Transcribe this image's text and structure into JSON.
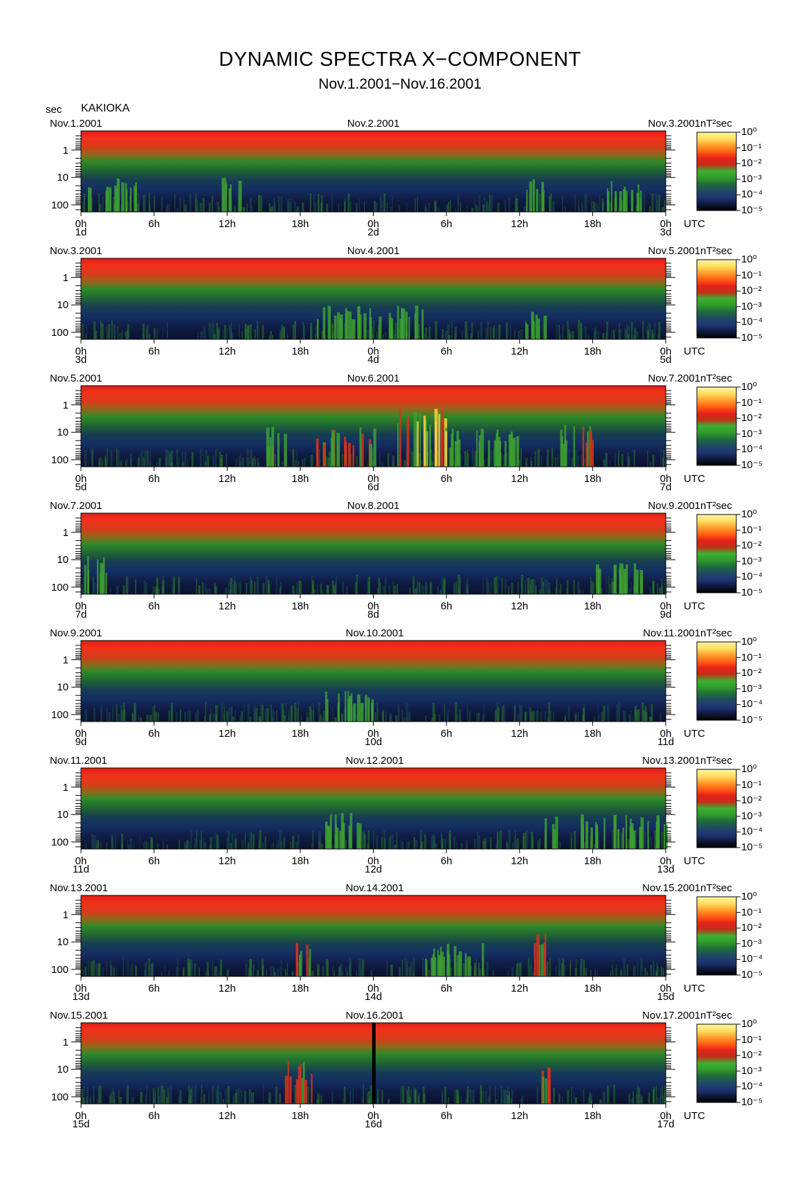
{
  "header": {
    "title": "DYNAMIC SPECTRA X−COMPONENT",
    "subtitle": "Nov.1.2001−Nov.16.2001",
    "y_unit": "sec",
    "station": "KAKIOKA"
  },
  "colors": {
    "background": "#ffffff",
    "colorbar": [
      "#000000",
      "#0f1a3c",
      "#1e3575",
      "#1e4a64",
      "#1f6a3a",
      "#2f9a2a",
      "#3cb032",
      "#c03018",
      "#e8201a",
      "#ff6010",
      "#ffa030",
      "#ffe060",
      "#fff6a8"
    ]
  },
  "chart_data": [
    {
      "type": "heatmap",
      "left_date": "Nov.1.2001",
      "mid_date": "Nov.2.2001",
      "right_date": "Nov.3.2001",
      "colorbar_unit": "nT²sec",
      "x_ticks": [
        "0h",
        "6h",
        "12h",
        "18h",
        "0h",
        "6h",
        "12h",
        "18h",
        "0h"
      ],
      "x_unit": "UTC",
      "day_labels": [
        "1d",
        "2d",
        "3d"
      ],
      "y_ticks": [
        "1",
        "10",
        "100"
      ],
      "colorbar_ticks": [
        "10⁰",
        "10⁻¹",
        "10⁻²",
        "10⁻³",
        "10⁻⁴",
        "10⁻⁵"
      ],
      "activity_bursts": [
        [
          0.5,
          4.5,
          0.45
        ],
        [
          11.5,
          13,
          0.5
        ],
        [
          36.5,
          38,
          0.45
        ],
        [
          43,
          46,
          0.35
        ]
      ]
    },
    {
      "type": "heatmap",
      "left_date": "Nov.3.2001",
      "mid_date": "Nov.4.2001",
      "right_date": "Nov.5.2001",
      "colorbar_unit": "nT²sec",
      "x_ticks": [
        "0h",
        "6h",
        "12h",
        "18h",
        "0h",
        "6h",
        "12h",
        "18h",
        "0h"
      ],
      "x_unit": "UTC",
      "day_labels": [
        "3d",
        "4d",
        "5d"
      ],
      "y_ticks": [
        "1",
        "10",
        "100"
      ],
      "colorbar_ticks": [
        "10⁰",
        "10⁻¹",
        "10⁻²",
        "10⁻³",
        "10⁻⁴",
        "10⁻⁵"
      ],
      "activity_bursts": [
        [
          19,
          28,
          0.4
        ],
        [
          36,
          38,
          0.3
        ]
      ]
    },
    {
      "type": "heatmap",
      "left_date": "Nov.5.2001",
      "mid_date": "Nov.6.2001",
      "right_date": "Nov.7.2001",
      "colorbar_unit": "nT²sec",
      "x_ticks": [
        "0h",
        "6h",
        "12h",
        "18h",
        "0h",
        "6h",
        "12h",
        "18h",
        "0h"
      ],
      "x_unit": "UTC",
      "day_labels": [
        "5d",
        "6d",
        "7d"
      ],
      "y_ticks": [
        "1",
        "10",
        "100"
      ],
      "colorbar_ticks": [
        "10⁰",
        "10⁻¹",
        "10⁻²",
        "10⁻³",
        "10⁻⁴",
        "10⁻⁵"
      ],
      "activity_bursts": [
        [
          15,
          17,
          0.55
        ],
        [
          19,
          24,
          0.55
        ],
        [
          25.5,
          30,
          0.95
        ],
        [
          30,
          36,
          0.5
        ],
        [
          39,
          42,
          0.6
        ]
      ]
    },
    {
      "type": "heatmap",
      "left_date": "Nov.7.2001",
      "mid_date": "Nov.8.2001",
      "right_date": "Nov.9.2001",
      "colorbar_unit": "nT²sec",
      "x_ticks": [
        "0h",
        "6h",
        "12h",
        "18h",
        "0h",
        "6h",
        "12h",
        "18h",
        "0h"
      ],
      "x_unit": "UTC",
      "day_labels": [
        "7d",
        "8d",
        "9d"
      ],
      "y_ticks": [
        "1",
        "10",
        "100"
      ],
      "colorbar_ticks": [
        "10⁰",
        "10⁻¹",
        "10⁻²",
        "10⁻³",
        "10⁻⁴",
        "10⁻⁵"
      ],
      "activity_bursts": [
        [
          0,
          2.5,
          0.5
        ],
        [
          42,
          46,
          0.4
        ]
      ]
    },
    {
      "type": "heatmap",
      "left_date": "Nov.9.2001",
      "mid_date": "Nov.10.2001",
      "right_date": "Nov.11.2001",
      "colorbar_unit": "nT²sec",
      "x_ticks": [
        "0h",
        "6h",
        "12h",
        "18h",
        "0h",
        "6h",
        "12h",
        "18h",
        "0h"
      ],
      "x_unit": "UTC",
      "day_labels": [
        "9d",
        "10d",
        "11d"
      ],
      "y_ticks": [
        "1",
        "10",
        "100"
      ],
      "colorbar_ticks": [
        "10⁰",
        "10⁻¹",
        "10⁻²",
        "10⁻³",
        "10⁻⁴",
        "10⁻⁵"
      ],
      "activity_bursts": [
        [
          20,
          24,
          0.35
        ]
      ]
    },
    {
      "type": "heatmap",
      "left_date": "Nov.11.2001",
      "mid_date": "Nov.12.2001",
      "right_date": "Nov.13.2001",
      "colorbar_unit": "nT²sec",
      "x_ticks": [
        "0h",
        "6h",
        "12h",
        "18h",
        "0h",
        "6h",
        "12h",
        "18h",
        "0h"
      ],
      "x_unit": "UTC",
      "day_labels": [
        "11d",
        "12d",
        "13d"
      ],
      "y_ticks": [
        "1",
        "10",
        "100"
      ],
      "colorbar_ticks": [
        "10⁰",
        "10⁻¹",
        "10⁻²",
        "10⁻³",
        "10⁻⁴",
        "10⁻⁵"
      ],
      "activity_bursts": [
        [
          20,
          23.5,
          0.45
        ],
        [
          38,
          39,
          0.4
        ],
        [
          41,
          48,
          0.45
        ]
      ]
    },
    {
      "type": "heatmap",
      "left_date": "Nov.13.2001",
      "mid_date": "Nov.14.2001",
      "right_date": "Nov.15.2001",
      "colorbar_unit": "nT²sec",
      "x_ticks": [
        "0h",
        "6h",
        "12h",
        "18h",
        "0h",
        "6h",
        "12h",
        "18h",
        "0h"
      ],
      "x_unit": "UTC",
      "day_labels": [
        "13d",
        "14d",
        "15d"
      ],
      "y_ticks": [
        "1",
        "10",
        "100"
      ],
      "colorbar_ticks": [
        "10⁰",
        "10⁻¹",
        "10⁻²",
        "10⁻³",
        "10⁻⁴",
        "10⁻⁵"
      ],
      "activity_bursts": [
        [
          17.5,
          19,
          0.55
        ],
        [
          28,
          33,
          0.4
        ],
        [
          37,
          38.5,
          0.6
        ]
      ]
    },
    {
      "type": "heatmap",
      "left_date": "Nov.15.2001",
      "mid_date": "Nov.16.2001",
      "right_date": "Nov.17.2001",
      "colorbar_unit": "nT²sec",
      "x_ticks": [
        "0h",
        "6h",
        "12h",
        "18h",
        "0h",
        "6h",
        "12h",
        "18h",
        "0h"
      ],
      "x_unit": "UTC",
      "day_labels": [
        "15d",
        "16d",
        "17d"
      ],
      "y_ticks": [
        "1",
        "10",
        "100"
      ],
      "colorbar_ticks": [
        "10⁰",
        "10⁻¹",
        "10⁻²",
        "10⁻³",
        "10⁻⁴",
        "10⁻⁵"
      ],
      "activity_bursts": [
        [
          16.5,
          19,
          0.65
        ],
        [
          37.5,
          39,
          0.6
        ]
      ],
      "data_gap_hour": 23.9
    }
  ]
}
